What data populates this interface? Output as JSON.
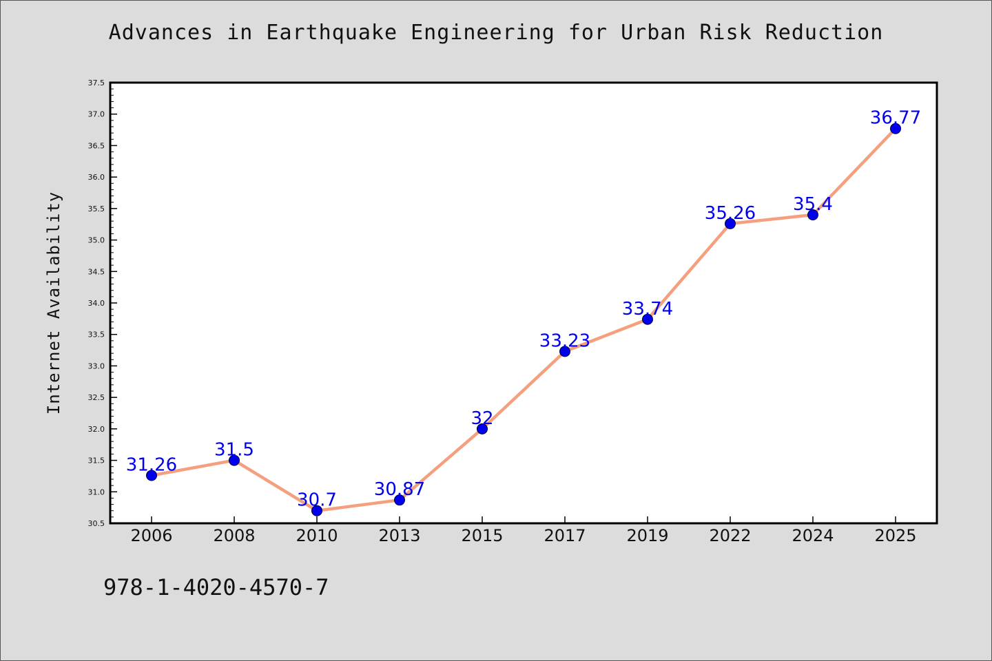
{
  "chart_data": {
    "type": "line",
    "title": "Advances in Earthquake Engineering for Urban Risk Reduction",
    "xlabel": "",
    "ylabel": "Internet Availability",
    "categories": [
      "2006",
      "2008",
      "2010",
      "2013",
      "2015",
      "2017",
      "2019",
      "2022",
      "2024",
      "2025"
    ],
    "series": [
      {
        "values": [
          31.26,
          31.5,
          30.7,
          30.87,
          32,
          33.23,
          33.74,
          35.26,
          35.4,
          36.77
        ],
        "labels": [
          "31.26",
          "31.5",
          "30.7",
          "30.87",
          "32",
          "33.23",
          "33.74",
          "35.26",
          "35.4",
          "36.77"
        ]
      }
    ],
    "ylim": [
      30.5,
      37.5
    ],
    "yticks": [
      "30.5",
      "31.0",
      "31.5",
      "32.0",
      "32.5",
      "33.0",
      "33.5",
      "34.0",
      "34.5",
      "35.0",
      "35.5",
      "36.0",
      "36.5",
      "37.0",
      "37.5"
    ],
    "grid": false,
    "colors": {
      "line": "#f4a07e",
      "marker": "#0000ee",
      "label": "#0000ee",
      "background": "#dcdcdc",
      "plot_bg": "#ffffff"
    }
  },
  "footer": {
    "code": "978-1-4020-4570-7"
  }
}
